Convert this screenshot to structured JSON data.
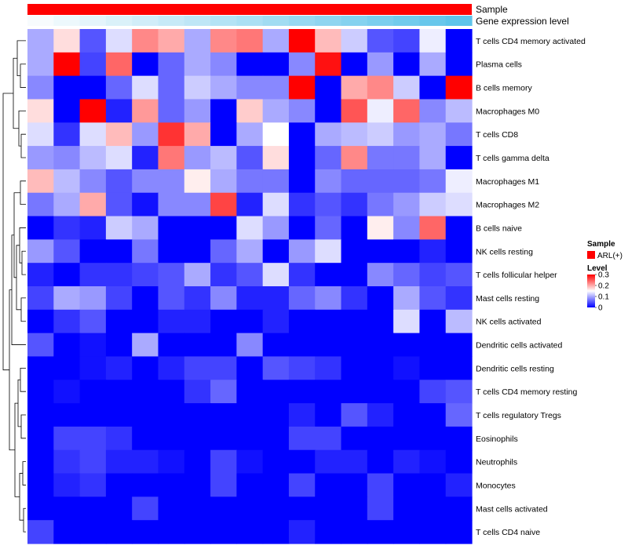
{
  "chart_data": {
    "type": "heatmap",
    "annotation_tracks": [
      "Sample",
      "Gene expression level"
    ],
    "sample_annotation": {
      "label": "ARL(+)",
      "color": "#ff0000"
    },
    "expression_ramp": [
      "#f7fbfd",
      "#5ec4ea"
    ],
    "columns": 17,
    "rows": [
      "T cells CD4 memory activated",
      "Plasma cells",
      "B cells memory",
      "Macrophages M0",
      "T cells CD8",
      "T cells gamma delta",
      "Macrophages M1",
      "Macrophages M2",
      "B cells naive",
      "NK cells resting",
      "T cells follicular helper",
      "Mast cells resting",
      "NK cells activated",
      "Dendritic cells activated",
      "Dendritic cells resting",
      "T cells CD4 memory resting",
      "T cells regulatory  Tregs",
      "Eosinophils",
      "Neutrophils",
      "Monocytes",
      "Mast cells activated",
      "T cells CD4 naive"
    ],
    "values": [
      [
        0.1,
        0.17,
        0.05,
        0.13,
        0.22,
        0.2,
        0.1,
        0.22,
        0.23,
        0.1,
        0.3,
        0.19,
        0.12,
        0.05,
        0.04,
        0.14,
        0.0
      ],
      [
        0.1,
        0.3,
        0.04,
        0.24,
        0.0,
        0.06,
        0.1,
        0.08,
        0.0,
        0.0,
        0.08,
        0.29,
        0.0,
        0.09,
        0.0,
        0.1,
        0.0
      ],
      [
        0.08,
        0.0,
        0.0,
        0.06,
        0.13,
        0.06,
        0.12,
        0.1,
        0.08,
        0.08,
        0.3,
        0.0,
        0.2,
        0.22,
        0.12,
        0.0,
        0.3
      ],
      [
        0.17,
        0.0,
        0.3,
        0.02,
        0.21,
        0.06,
        0.09,
        0.0,
        0.18,
        0.1,
        0.08,
        0.0,
        0.25,
        0.14,
        0.24,
        0.08,
        0.11
      ],
      [
        0.13,
        0.03,
        0.13,
        0.19,
        0.09,
        0.27,
        0.2,
        0.0,
        0.1,
        0.15,
        0.0,
        0.1,
        0.11,
        0.12,
        0.09,
        0.1,
        0.07
      ],
      [
        0.09,
        0.08,
        0.11,
        0.13,
        0.02,
        0.23,
        0.09,
        0.11,
        0.05,
        0.17,
        0.0,
        0.06,
        0.22,
        0.07,
        0.07,
        0.1,
        0.0
      ],
      [
        0.19,
        0.11,
        0.08,
        0.05,
        0.08,
        0.08,
        0.16,
        0.1,
        0.07,
        0.07,
        0.0,
        0.08,
        0.06,
        0.06,
        0.06,
        0.07,
        0.14
      ],
      [
        0.07,
        0.1,
        0.2,
        0.05,
        0.01,
        0.08,
        0.08,
        0.26,
        0.02,
        0.13,
        0.03,
        0.05,
        0.03,
        0.07,
        0.09,
        0.12,
        0.13
      ],
      [
        0.0,
        0.03,
        0.02,
        0.12,
        0.1,
        0.0,
        0.0,
        0.0,
        0.13,
        0.09,
        0.0,
        0.06,
        0.0,
        0.16,
        0.08,
        0.24,
        0.0
      ],
      [
        0.09,
        0.05,
        0.0,
        0.0,
        0.07,
        0.0,
        0.0,
        0.06,
        0.1,
        0.0,
        0.09,
        0.13,
        0.0,
        0.0,
        0.0,
        0.02,
        0.0
      ],
      [
        0.02,
        0.0,
        0.03,
        0.03,
        0.04,
        0.05,
        0.1,
        0.03,
        0.05,
        0.13,
        0.03,
        0.0,
        0.0,
        0.08,
        0.06,
        0.04,
        0.05
      ],
      [
        0.04,
        0.1,
        0.09,
        0.04,
        0.0,
        0.05,
        0.03,
        0.08,
        0.02,
        0.02,
        0.06,
        0.08,
        0.03,
        0.0,
        0.1,
        0.05,
        0.03
      ],
      [
        0.0,
        0.03,
        0.05,
        0.0,
        0.0,
        0.02,
        0.02,
        0.0,
        0.0,
        0.02,
        0.0,
        0.0,
        0.0,
        0.0,
        0.13,
        0.0,
        0.11
      ],
      [
        0.05,
        0.0,
        0.01,
        0.0,
        0.1,
        0.0,
        0.0,
        0.0,
        0.08,
        0.0,
        0.0,
        0.0,
        0.0,
        0.0,
        0.0,
        0.0,
        0.0
      ],
      [
        0.0,
        0.0,
        0.01,
        0.02,
        0.0,
        0.02,
        0.04,
        0.04,
        0.0,
        0.05,
        0.04,
        0.03,
        0.0,
        0.0,
        0.01,
        0.0,
        0.0
      ],
      [
        0.0,
        0.01,
        0.0,
        0.0,
        0.0,
        0.0,
        0.03,
        0.06,
        0.0,
        0.0,
        0.0,
        0.0,
        0.0,
        0.0,
        0.0,
        0.04,
        0.05
      ],
      [
        0.0,
        0.0,
        0.0,
        0.0,
        0.0,
        0.0,
        0.0,
        0.0,
        0.0,
        0.0,
        0.02,
        0.0,
        0.05,
        0.02,
        0.0,
        0.0,
        0.06
      ],
      [
        0.0,
        0.04,
        0.04,
        0.03,
        0.0,
        0.0,
        0.0,
        0.0,
        0.0,
        0.0,
        0.04,
        0.04,
        0.0,
        0.0,
        0.0,
        0.0,
        0.0
      ],
      [
        0.0,
        0.03,
        0.04,
        0.02,
        0.02,
        0.01,
        0.0,
        0.04,
        0.01,
        0.0,
        0.0,
        0.02,
        0.02,
        0.0,
        0.02,
        0.01,
        0.0
      ],
      [
        0.0,
        0.02,
        0.03,
        0.0,
        0.0,
        0.0,
        0.0,
        0.04,
        0.0,
        0.0,
        0.04,
        0.0,
        0.0,
        0.04,
        0.0,
        0.0,
        0.02
      ],
      [
        0.0,
        0.0,
        0.0,
        0.0,
        0.04,
        0.0,
        0.0,
        0.0,
        0.0,
        0.0,
        0.0,
        0.0,
        0.0,
        0.04,
        0.0,
        0.0,
        0.0
      ],
      [
        0.04,
        0.0,
        0.0,
        0.0,
        0.0,
        0.0,
        0.0,
        0.0,
        0.0,
        0.0,
        0.02,
        0.0,
        0.0,
        0.0,
        0.0,
        0.0,
        0.0
      ]
    ],
    "color_scale": {
      "low": "#0000ff",
      "mid": "#ffffff",
      "high": "#ff0000",
      "min": 0,
      "mid_value": 0.15,
      "max": 0.3
    },
    "legend": {
      "sample_title": "Sample",
      "level_title": "Level",
      "ticks": [
        {
          "value": 0.3,
          "label": "0.3"
        },
        {
          "value": 0.2,
          "label": "0.2"
        },
        {
          "value": 0.1,
          "label": "0.1"
        },
        {
          "value": 0,
          "label": "0"
        }
      ]
    }
  }
}
